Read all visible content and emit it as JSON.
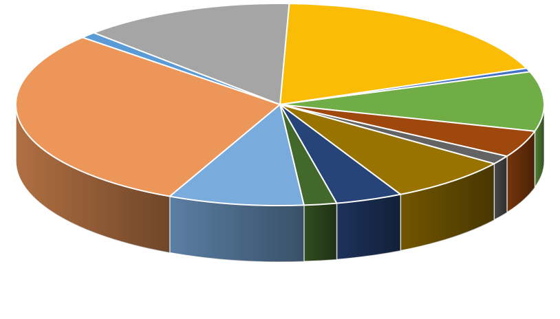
{
  "chart_data": {
    "type": "pie",
    "style": "3d-exploded-free",
    "title": "",
    "legend": "none",
    "data_labels": "none",
    "slices": [
      {
        "value": 18.6,
        "color": "#fbbc05"
      },
      {
        "value": 0.6,
        "color": "#4472c4"
      },
      {
        "value": 9.5,
        "color": "#70ad47"
      },
      {
        "value": 4.3,
        "color": "#9e480e"
      },
      {
        "value": 1.4,
        "color": "#636363"
      },
      {
        "value": 7.5,
        "color": "#997300"
      },
      {
        "value": 4.1,
        "color": "#264478"
      },
      {
        "value": 2.0,
        "color": "#43682b"
      },
      {
        "value": 8.3,
        "color": "#7aabdd"
      },
      {
        "value": 29.7,
        "color": "#ed9659"
      },
      {
        "value": 1.0,
        "color": "#5b9bd5"
      },
      {
        "value": 13.0,
        "color": "#a5a5a5"
      }
    ]
  }
}
